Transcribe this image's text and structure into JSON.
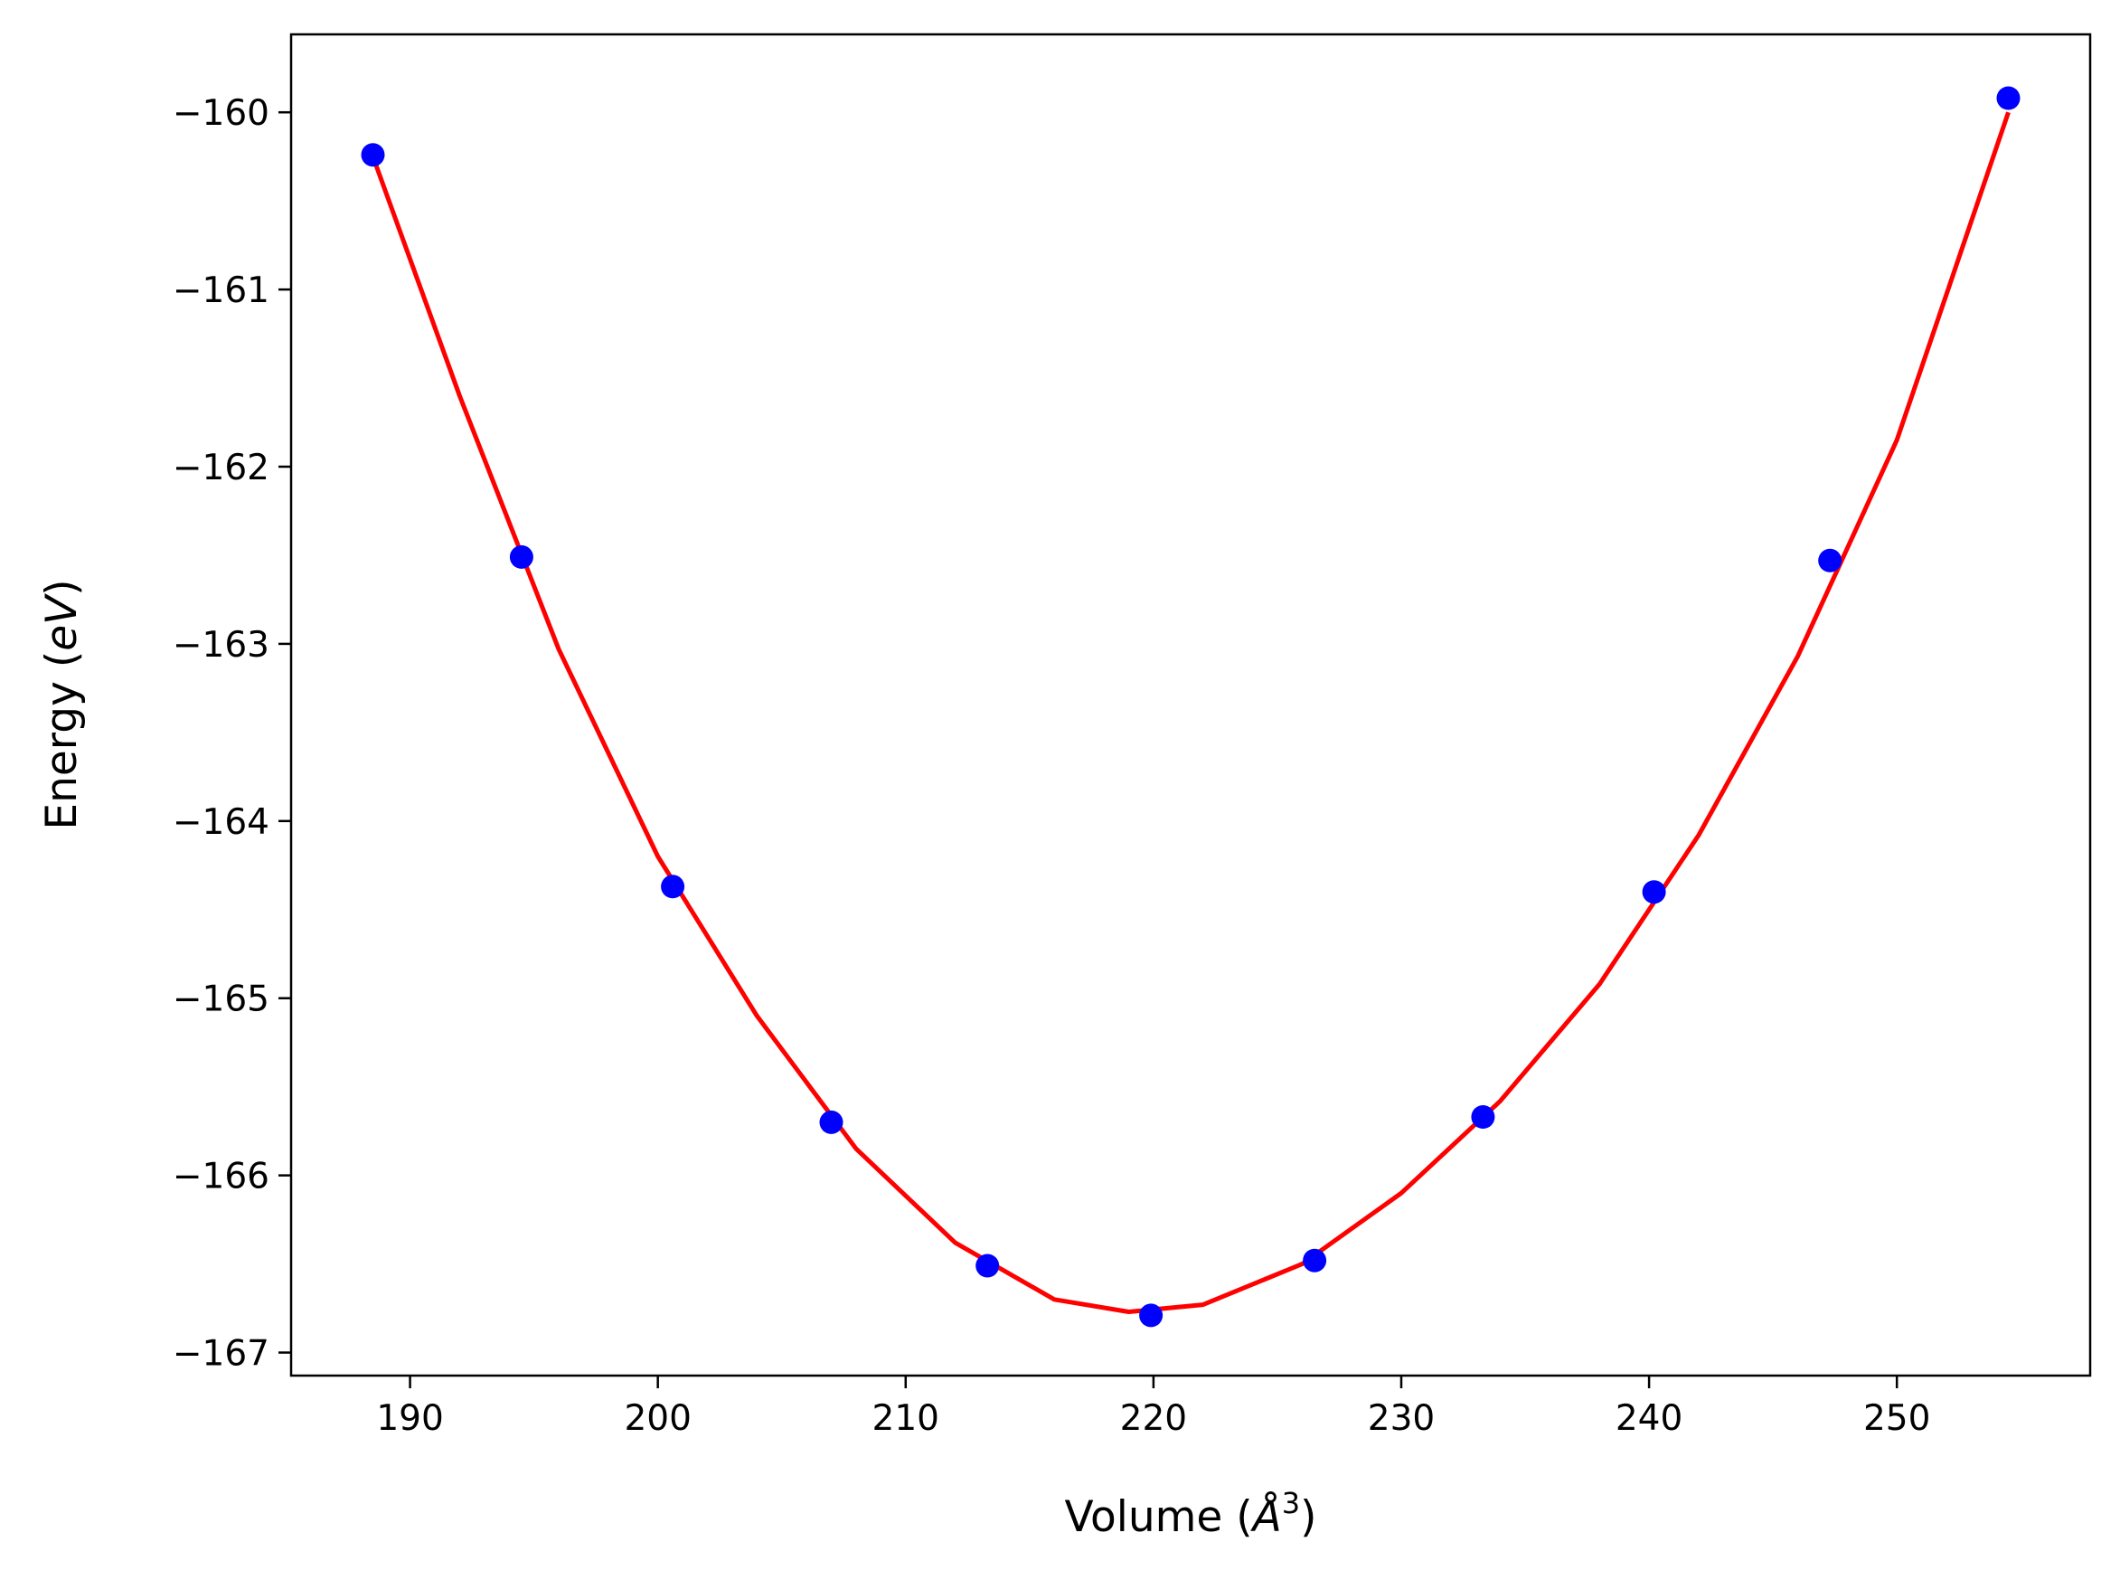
{
  "chart_data": {
    "type": "scatter",
    "title": "",
    "xlabel_parts": {
      "pre": "Volume (",
      "sym": "Å",
      "sup": "3",
      "post": ")"
    },
    "ylabel_parts": {
      "pre": "Energy (",
      "sym": "eV",
      "post": ")"
    },
    "xlim": [
      185.2,
      257.8
    ],
    "ylim": [
      -167.13,
      -159.56
    ],
    "xticks": [
      190,
      200,
      210,
      220,
      230,
      240,
      250
    ],
    "xtick_labels": [
      "190",
      "200",
      "210",
      "220",
      "230",
      "240",
      "250"
    ],
    "yticks": [
      -167,
      -166,
      -165,
      -164,
      -163,
      -162,
      -161,
      -160
    ],
    "ytick_labels": [
      "−167",
      "−166",
      "−165",
      "−164",
      "−163",
      "−162",
      "−161",
      "−160"
    ],
    "grid": false,
    "series": [
      {
        "type": "scatter",
        "color": "#0000ff",
        "x": [
          188.5,
          194.5,
          200.6,
          207.0,
          213.3,
          219.9,
          226.5,
          233.3,
          240.2,
          247.3,
          254.5
        ],
        "y": [
          -160.24,
          -162.51,
          -164.37,
          -165.7,
          -166.51,
          -166.79,
          -166.48,
          -165.67,
          -164.4,
          -162.53,
          -159.92
        ]
      },
      {
        "type": "line",
        "color": "#ff0000",
        "x": [
          188.5,
          192.0,
          196.0,
          200.0,
          204.0,
          208.0,
          212.0,
          216.0,
          219.0,
          222.0,
          226.0,
          230.0,
          234.0,
          238.0,
          242.0,
          246.0,
          250.0,
          254.5
        ],
        "y": [
          -160.25,
          -161.6,
          -163.03,
          -164.2,
          -165.1,
          -165.85,
          -166.38,
          -166.7,
          -166.77,
          -166.73,
          -166.5,
          -166.1,
          -165.58,
          -164.92,
          -164.08,
          -163.07,
          -161.85,
          -160.0
        ]
      }
    ]
  }
}
